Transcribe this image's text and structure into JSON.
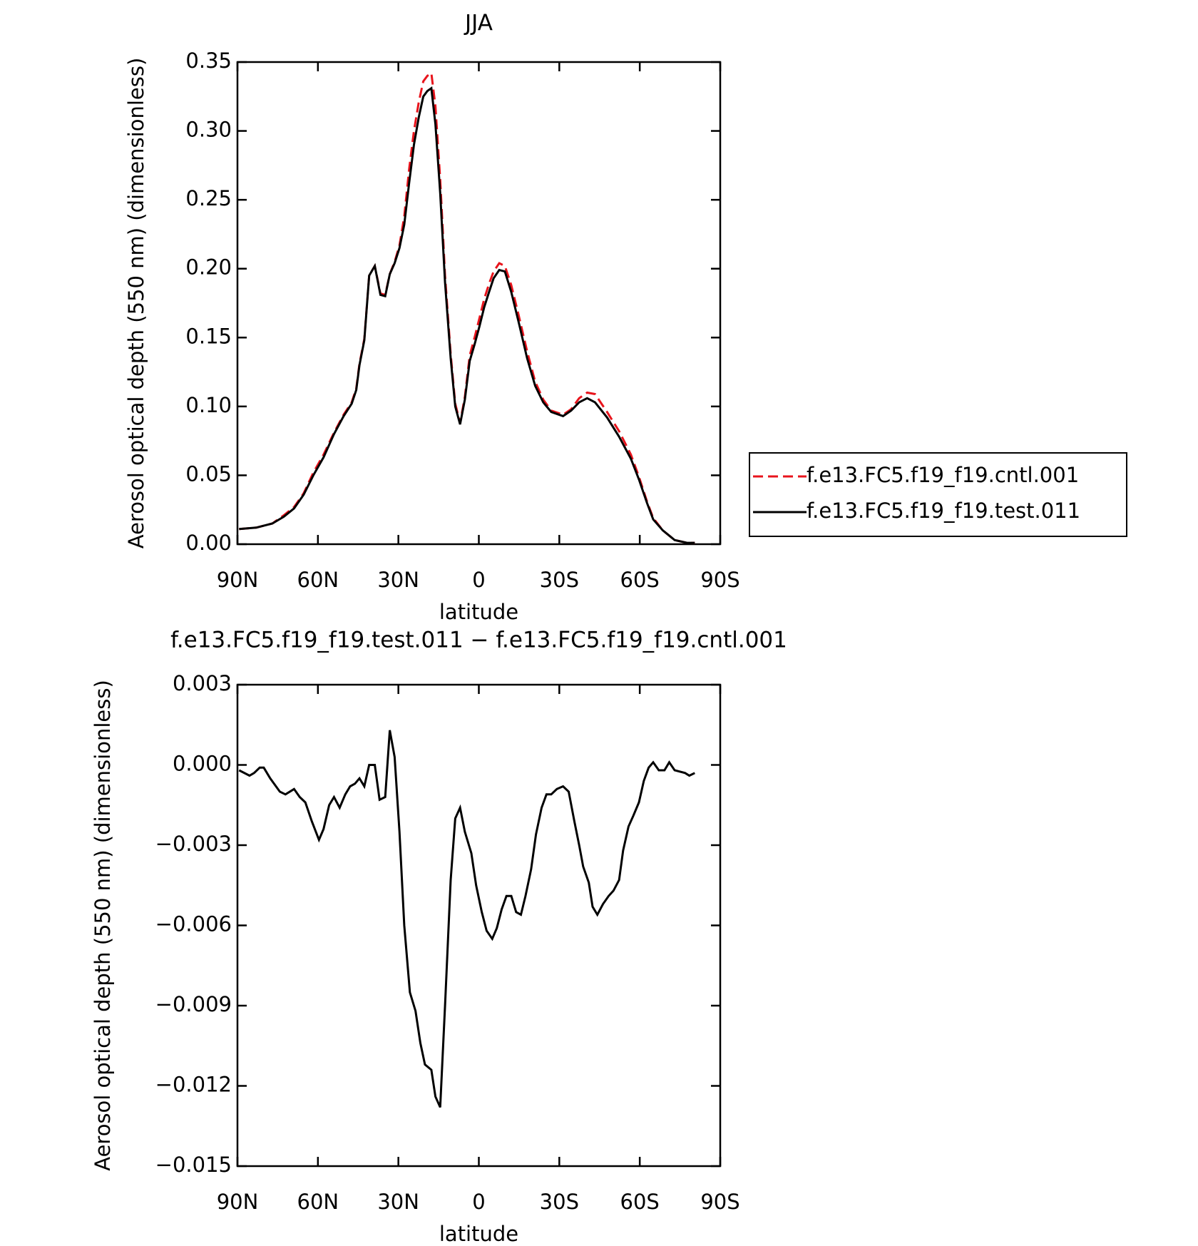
{
  "chart_data": [
    {
      "type": "line",
      "title": "JJA",
      "xlabel": "latitude",
      "ylabel": "Aerosol optical depth (550 nm) (dimensionless)",
      "x": [
        89.4,
        83,
        77,
        72.7,
        68.9,
        65.3,
        61.7,
        57.9,
        54,
        50.4,
        47.4,
        45.7,
        44.5,
        42.7,
        40.9,
        38.8,
        36.7,
        34.9,
        33.2,
        31.4,
        29.6,
        27.8,
        26,
        24.2,
        22.4,
        20.7,
        19.2,
        17.7,
        16.2,
        14.4,
        12.6,
        10.5,
        8.8,
        7,
        5.2,
        3.4,
        1.6,
        -0.2,
        -2,
        -3.8,
        -5.5,
        -7.6,
        -9.7,
        -12.1,
        -15,
        -18,
        -21,
        -24,
        -27,
        -31.4,
        -34.4,
        -37.4,
        -40.4,
        -43.3,
        -47.8,
        -52.3,
        -56.7,
        -59.7,
        -62.7,
        -65,
        -68.6,
        -73,
        -77.6,
        -80.5
      ],
      "series": [
        {
          "name": "f.e13.FC5.f19_f19.cntl.001",
          "color": "#e8141c",
          "style": "dashed",
          "values": [
            0.011,
            0.012,
            0.015,
            0.021,
            0.027,
            0.037,
            0.052,
            0.065,
            0.081,
            0.094,
            0.103,
            0.113,
            0.131,
            0.149,
            0.195,
            0.202,
            0.182,
            0.181,
            0.196,
            0.205,
            0.217,
            0.238,
            0.272,
            0.3,
            0.321,
            0.336,
            0.34,
            0.342,
            0.318,
            0.265,
            0.195,
            0.138,
            0.102,
            0.088,
            0.107,
            0.137,
            0.15,
            0.164,
            0.178,
            0.189,
            0.198,
            0.204,
            0.202,
            0.188,
            0.165,
            0.14,
            0.118,
            0.105,
            0.097,
            0.094,
            0.098,
            0.106,
            0.11,
            0.109,
            0.096,
            0.082,
            0.065,
            0.049,
            0.031,
            0.019,
            0.01,
            0.003,
            0.001,
            0.001
          ]
        },
        {
          "name": "f.e13.FC5.f19_f19.test.011",
          "color": "#000000",
          "style": "solid",
          "values": [
            0.011,
            0.012,
            0.015,
            0.02,
            0.026,
            0.036,
            0.05,
            0.063,
            0.08,
            0.093,
            0.102,
            0.112,
            0.13,
            0.148,
            0.195,
            0.202,
            0.181,
            0.18,
            0.196,
            0.204,
            0.215,
            0.232,
            0.262,
            0.29,
            0.31,
            0.325,
            0.329,
            0.331,
            0.305,
            0.255,
            0.19,
            0.135,
            0.1,
            0.087,
            0.105,
            0.133,
            0.145,
            0.158,
            0.172,
            0.183,
            0.193,
            0.199,
            0.198,
            0.183,
            0.16,
            0.135,
            0.115,
            0.103,
            0.096,
            0.093,
            0.097,
            0.103,
            0.106,
            0.103,
            0.092,
            0.078,
            0.062,
            0.047,
            0.03,
            0.018,
            0.01,
            0.003,
            0.001,
            0.001
          ]
        }
      ],
      "xlim": [
        90,
        -90
      ],
      "xticks": [
        {
          "value": 90,
          "label": "90N"
        },
        {
          "value": 60,
          "label": "60N"
        },
        {
          "value": 30,
          "label": "30N"
        },
        0,
        {
          "value": -30,
          "label": "30S"
        },
        {
          "value": -60,
          "label": "60S"
        },
        {
          "value": -90,
          "label": "90S"
        }
      ],
      "ylim": [
        0,
        0.35
      ],
      "yticks": [
        {
          "value": 0,
          "label": "0.00"
        },
        0.05,
        {
          "value": 0.1,
          "label": "0.10"
        },
        0.15,
        {
          "value": 0.2,
          "label": "0.20"
        },
        0.25,
        {
          "value": 0.3,
          "label": "0.30"
        },
        0.35
      ],
      "legend": "outside-right"
    },
    {
      "type": "line",
      "title": "f.e13.FC5.f19_f19.test.011 − f.e13.FC5.f19_f19.cntl.001",
      "xlabel": "latitude",
      "ylabel": "Aerosol optical depth (550 nm) (dimensionless)",
      "x": [
        89.4,
        85.5,
        83.8,
        81.7,
        80.2,
        77.8,
        74.2,
        72.1,
        68.9,
        66.8,
        64.7,
        62.3,
        59.6,
        57.9,
        55.8,
        54,
        51.9,
        49.8,
        48,
        46.2,
        44.5,
        42.7,
        40.9,
        38.8,
        37,
        34.9,
        33.2,
        31.4,
        29.6,
        27.8,
        25.7,
        23.6,
        21.8,
        20.1,
        17.7,
        16.2,
        14.4,
        12.6,
        10.5,
        8.8,
        7,
        5.2,
        2.8,
        1,
        -1.1,
        -2.9,
        -5,
        -6.7,
        -8.5,
        -10.3,
        -12.1,
        -13.9,
        -15.7,
        -17.4,
        -19.5,
        -21.3,
        -23.4,
        -25.2,
        -27,
        -29.1,
        -31.4,
        -33.5,
        -35.6,
        -37.4,
        -38.9,
        -41,
        -42.4,
        -44.2,
        -46.3,
        -48.4,
        -50.2,
        -52.3,
        -53.8,
        -55.8,
        -57.6,
        -59.7,
        -61.5,
        -63.3,
        -65,
        -67.1,
        -69.2,
        -71,
        -73,
        -76.9,
        -78.5,
        -80.5
      ],
      "values": [
        -0.0002,
        -0.0004,
        -0.0003,
        -0.0001,
        -0.0001,
        -0.0005,
        -0.001,
        -0.0011,
        -0.0009,
        -0.0012,
        -0.0014,
        -0.0021,
        -0.0028,
        -0.0024,
        -0.0015,
        -0.0012,
        -0.0016,
        -0.0011,
        -0.0008,
        -0.0007,
        -0.0005,
        -0.0008,
        0.0,
        0.0,
        -0.0013,
        -0.0012,
        0.0013,
        0.0003,
        -0.0025,
        -0.006,
        -0.0085,
        -0.0092,
        -0.0104,
        -0.0112,
        -0.0114,
        -0.0124,
        -0.0128,
        -0.009,
        -0.0043,
        -0.002,
        -0.0016,
        -0.0025,
        -0.0033,
        -0.0045,
        -0.0055,
        -0.0062,
        -0.0065,
        -0.0061,
        -0.0054,
        -0.0049,
        -0.0049,
        -0.0055,
        -0.0056,
        -0.0049,
        -0.0039,
        -0.0026,
        -0.0016,
        -0.0011,
        -0.0011,
        -0.0009,
        -0.0008,
        -0.001,
        -0.0021,
        -0.003,
        -0.0038,
        -0.0044,
        -0.0053,
        -0.0056,
        -0.0052,
        -0.0049,
        -0.0047,
        -0.0043,
        -0.0032,
        -0.0023,
        -0.0019,
        -0.0014,
        -0.0006,
        -0.0001,
        0.0001,
        -0.0002,
        -0.0002,
        0.0001,
        -0.0002,
        -0.0003,
        -0.0004,
        -0.0003
      ],
      "color": "#000000",
      "xlim": [
        90,
        -90
      ],
      "xticks": [
        {
          "value": 90,
          "label": "90N"
        },
        {
          "value": 60,
          "label": "60N"
        },
        {
          "value": 30,
          "label": "30N"
        },
        0,
        {
          "value": -30,
          "label": "30S"
        },
        {
          "value": -60,
          "label": "60S"
        },
        {
          "value": -90,
          "label": "90S"
        }
      ],
      "ylim": [
        -0.015,
        0.003
      ],
      "yticks": [
        0.003,
        {
          "value": 0,
          "label": "0.000"
        },
        {
          "value": -0.003,
          "label": "−0.003"
        },
        {
          "value": -0.006,
          "label": "−0.006"
        },
        {
          "value": -0.009,
          "label": "−0.009"
        },
        {
          "value": -0.012,
          "label": "−0.012"
        },
        {
          "value": -0.015,
          "label": "−0.015"
        }
      ]
    }
  ]
}
